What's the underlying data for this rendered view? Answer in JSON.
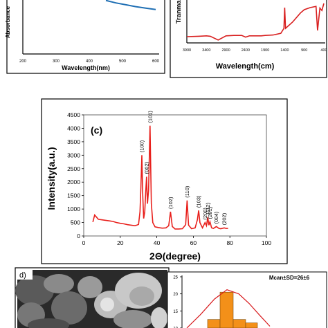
{
  "panel_a": {
    "ylabel": "Absorbance",
    "xlabel": "Wavelength(nm)",
    "x_ticks": [
      "200",
      "300",
      "400",
      "500",
      "600"
    ]
  },
  "panel_b": {
    "ylabel": "Tranmal",
    "xlabel": "Wavelength(cm)",
    "x_ticks": [
      "3900",
      "3400",
      "2900",
      "2400",
      "1900",
      "1400",
      "900",
      "400"
    ]
  },
  "panel_c": {
    "label": "(c)",
    "xlabel": "2Θ(degree)",
    "ylabel": "Intensity(a.u.)"
  },
  "panel_d": {
    "label": "d)"
  },
  "panel_e": {
    "stat_text": "Mcan±SD=26±6",
    "y_ticks": [
      "25",
      "20",
      "15",
      "10"
    ]
  },
  "colors": {
    "uv_line": "#1f6fb4",
    "ftir_line": "#d81e1e",
    "xrd_line": "#e8201c",
    "hist_bar": "#f39019",
    "hist_curve": "#d7191c"
  },
  "chart_data": [
    {
      "type": "line",
      "panel": "a",
      "xlabel": "Wavelength(nm)",
      "ylabel": "Absorbance",
      "xlim": [
        200,
        600
      ],
      "series": [
        {
          "x": [
            450,
            480,
            510,
            540,
            570,
            600
          ],
          "y": [
            0.86,
            0.82,
            0.79,
            0.76,
            0.735,
            0.715
          ]
        }
      ]
    },
    {
      "type": "line",
      "panel": "b",
      "xlabel": "Wavelength(cm)",
      "ylabel": "Tranmal",
      "xlim": [
        3900,
        400
      ],
      "series": [
        {
          "x": [
            3900,
            3600,
            3400,
            3300,
            3100,
            2900,
            2700,
            2500,
            2400,
            2300,
            2000,
            1900,
            1700,
            1500,
            1420,
            1400,
            1380,
            1200,
            1000,
            900,
            750,
            600,
            560,
            500,
            450,
            400
          ],
          "y": [
            0.15,
            0.16,
            0.17,
            0.16,
            0.07,
            0.17,
            0.18,
            0.18,
            0.14,
            0.17,
            0.17,
            0.18,
            0.19,
            0.23,
            0.35,
            0.85,
            0.35,
            0.5,
            0.72,
            0.8,
            0.85,
            0.88,
            0.3,
            0.84,
            0.78,
            0.95
          ]
        }
      ]
    },
    {
      "type": "line",
      "panel": "c",
      "xlabel": "2Θ(degree)",
      "ylabel": "Intensity(a.u.)",
      "xlim": [
        0,
        100
      ],
      "ylim": [
        0,
        4500
      ],
      "x_ticks": [
        0,
        20,
        40,
        60,
        80,
        100
      ],
      "y_ticks": [
        0,
        500,
        1000,
        1500,
        2000,
        2500,
        3000,
        3500,
        4000,
        4500
      ],
      "peak_labels": [
        {
          "label": "(100)",
          "x": 31.8,
          "y": 3000
        },
        {
          "label": "(002)",
          "x": 34.4,
          "y": 2200
        },
        {
          "label": "(101)",
          "x": 36.3,
          "y": 4100
        },
        {
          "label": "(102)",
          "x": 47.5,
          "y": 900
        },
        {
          "label": "(110)",
          "x": 56.6,
          "y": 1320
        },
        {
          "label": "(103)",
          "x": 62.9,
          "y": 950
        },
        {
          "label": "(200)",
          "x": 66.4,
          "y": 500
        },
        {
          "label": "(112)",
          "x": 67.9,
          "y": 700
        },
        {
          "label": "(201)",
          "x": 69.1,
          "y": 530
        },
        {
          "label": "(004)",
          "x": 72.6,
          "y": 350
        },
        {
          "label": "(202)",
          "x": 76.9,
          "y": 300
        }
      ],
      "series": [
        {
          "x": [
            5,
            6,
            7,
            8,
            10,
            12,
            14,
            16,
            18,
            20,
            22,
            24,
            26,
            28,
            29,
            30,
            30.8,
            31.3,
            31.8,
            32.3,
            32.8,
            33.4,
            33.9,
            34.4,
            34.9,
            35.5,
            36.3,
            37.0,
            37.8,
            39,
            41,
            43,
            45,
            46.5,
            47.5,
            48.5,
            50,
            52,
            54,
            55.8,
            56.6,
            57.4,
            59,
            61,
            62.2,
            62.9,
            63.6,
            65,
            66.4,
            67.2,
            67.9,
            68.5,
            69.1,
            70,
            71,
            72.6,
            74,
            75,
            76.9,
            78,
            79
          ],
          "y": [
            520,
            780,
            700,
            620,
            600,
            580,
            560,
            540,
            500,
            470,
            450,
            420,
            400,
            380,
            400,
            430,
            900,
            1800,
            3000,
            1500,
            650,
            900,
            1600,
            2200,
            1200,
            1700,
            4100,
            1200,
            500,
            340,
            310,
            290,
            300,
            380,
            900,
            350,
            260,
            260,
            270,
            420,
            1320,
            400,
            270,
            300,
            600,
            950,
            500,
            300,
            500,
            380,
            700,
            400,
            530,
            300,
            280,
            350,
            280,
            270,
            300,
            280,
            280
          ]
        }
      ]
    },
    {
      "type": "bar",
      "panel": "e",
      "ylim": [
        10,
        25
      ],
      "bars": [
        {
          "x0": 0.0,
          "x1": 0.18,
          "y": 12.5
        },
        {
          "x0": 0.18,
          "x1": 0.37,
          "y": 20.5
        },
        {
          "x0": 0.37,
          "x1": 0.55,
          "y": 12.5
        },
        {
          "x0": 0.55,
          "x1": 0.72,
          "y": 11.5
        }
      ],
      "curve": [
        {
          "x": -0.3,
          "y": 10.0
        },
        {
          "x": -0.1,
          "y": 14.0
        },
        {
          "x": 0.1,
          "y": 18.5
        },
        {
          "x": 0.28,
          "y": 21.2
        },
        {
          "x": 0.45,
          "y": 20.0
        },
        {
          "x": 0.6,
          "y": 17.2
        },
        {
          "x": 0.75,
          "y": 13.8
        },
        {
          "x": 0.9,
          "y": 10.5
        }
      ]
    }
  ]
}
